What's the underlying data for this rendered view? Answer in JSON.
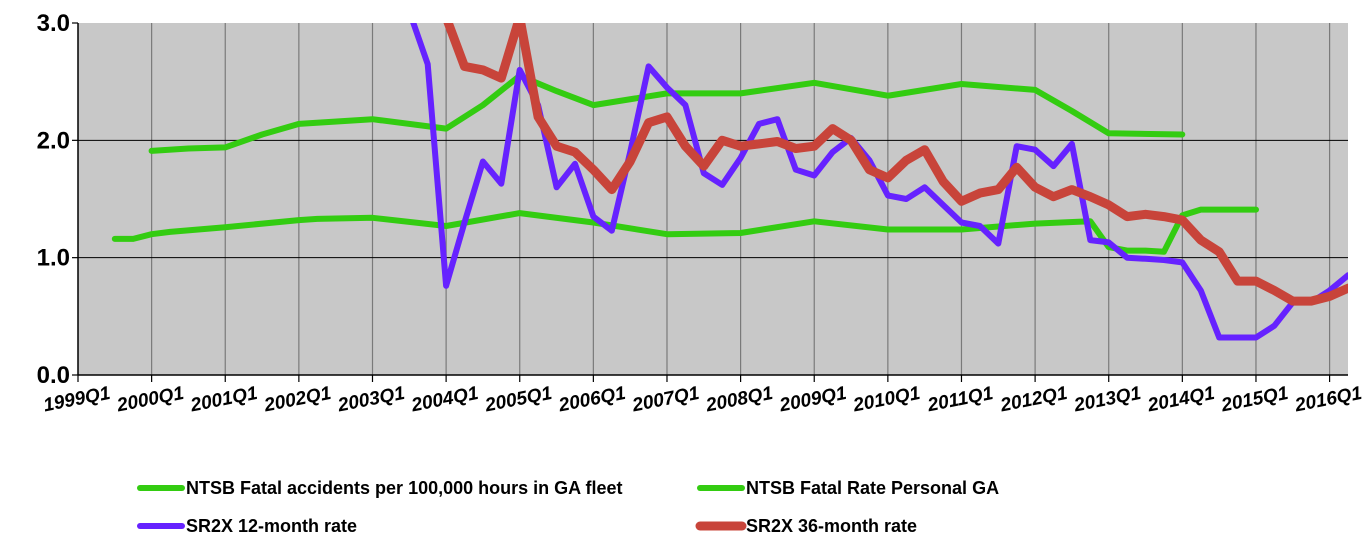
{
  "chart_data": {
    "type": "line",
    "title": "",
    "xlabel": "",
    "ylabel": "",
    "ylim": [
      0,
      3.0
    ],
    "xlim": [
      "1999Q1",
      "2016Q2"
    ],
    "y_ticks": [
      "0.0",
      "1.0",
      "2.0",
      "3.0"
    ],
    "x_ticks": [
      "1999Q1",
      "2000Q1",
      "2001Q1",
      "2002Q1",
      "2003Q1",
      "2004Q1",
      "2005Q1",
      "2006Q1",
      "2007Q1",
      "2008Q1",
      "2009Q1",
      "2010Q1",
      "2011Q1",
      "2012Q1",
      "2013Q1",
      "2014Q1",
      "2015Q1",
      "2016Q1"
    ],
    "grid": {
      "vertical": true,
      "horizontal": true
    },
    "plot_background": "#c8c8c8",
    "legend_position": "bottom",
    "series": [
      {
        "name": "NTSB Fatal accidents per 100,000 hours in GA fleet",
        "color": "#33cc11",
        "points": [
          [
            "1999Q3",
            1.16
          ],
          [
            "1999Q4",
            1.16
          ],
          [
            "2000Q1",
            1.2
          ],
          [
            "2000Q2",
            1.22
          ],
          [
            "2001Q1",
            1.26
          ],
          [
            "2002Q1",
            1.32
          ],
          [
            "2002Q2",
            1.33
          ],
          [
            "2003Q1",
            1.34
          ],
          [
            "2004Q1",
            1.27
          ],
          [
            "2005Q1",
            1.38
          ],
          [
            "2006Q1",
            1.3
          ],
          [
            "2007Q1",
            1.2
          ],
          [
            "2008Q1",
            1.21
          ],
          [
            "2009Q1",
            1.31
          ],
          [
            "2010Q1",
            1.24
          ],
          [
            "2011Q1",
            1.24
          ],
          [
            "2012Q1",
            1.29
          ],
          [
            "2012Q4",
            1.31
          ],
          [
            "2013Q1",
            1.09
          ],
          [
            "2013Q2",
            1.06
          ],
          [
            "2013Q3",
            1.06
          ],
          [
            "2013Q4",
            1.05
          ],
          [
            "2014Q1",
            1.36
          ],
          [
            "2014Q2",
            1.41
          ],
          [
            "2014Q3",
            1.41
          ],
          [
            "2014Q4",
            1.41
          ],
          [
            "2015Q1",
            1.41
          ]
        ]
      },
      {
        "name": "NTSB Fatal Rate Personal GA",
        "color": "#33cc11",
        "points": [
          [
            "2000Q1",
            1.91
          ],
          [
            "2000Q3",
            1.93
          ],
          [
            "2001Q1",
            1.94
          ],
          [
            "2001Q3",
            2.05
          ],
          [
            "2002Q1",
            2.14
          ],
          [
            "2003Q1",
            2.18
          ],
          [
            "2004Q1",
            2.1
          ],
          [
            "2004Q3",
            2.3
          ],
          [
            "2005Q1",
            2.55
          ],
          [
            "2005Q3",
            2.42
          ],
          [
            "2006Q1",
            2.3
          ],
          [
            "2007Q1",
            2.4
          ],
          [
            "2008Q1",
            2.4
          ],
          [
            "2009Q1",
            2.49
          ],
          [
            "2010Q1",
            2.38
          ],
          [
            "2011Q1",
            2.48
          ],
          [
            "2012Q1",
            2.43
          ],
          [
            "2012Q3",
            2.25
          ],
          [
            "2013Q1",
            2.06
          ],
          [
            "2014Q1",
            2.05
          ]
        ]
      },
      {
        "name": "SR2X 12-month rate",
        "color": "#6622ff",
        "points": [
          [
            "2003Q3",
            3.1
          ],
          [
            "2003Q4",
            2.65
          ],
          [
            "2004Q1",
            0.76
          ],
          [
            "2004Q2",
            1.3
          ],
          [
            "2004Q3",
            1.82
          ],
          [
            "2004Q4",
            1.63
          ],
          [
            "2005Q1",
            2.6
          ],
          [
            "2005Q2",
            2.3
          ],
          [
            "2005Q3",
            1.6
          ],
          [
            "2005Q4",
            1.8
          ],
          [
            "2006Q1",
            1.35
          ],
          [
            "2006Q2",
            1.23
          ],
          [
            "2006Q3",
            1.9
          ],
          [
            "2006Q4",
            2.63
          ],
          [
            "2007Q1",
            2.45
          ],
          [
            "2007Q2",
            2.3
          ],
          [
            "2007Q3",
            1.72
          ],
          [
            "2007Q4",
            1.62
          ],
          [
            "2008Q1",
            1.85
          ],
          [
            "2008Q2",
            2.14
          ],
          [
            "2008Q3",
            2.18
          ],
          [
            "2008Q4",
            1.75
          ],
          [
            "2009Q1",
            1.7
          ],
          [
            "2009Q2",
            1.9
          ],
          [
            "2009Q3",
            2.02
          ],
          [
            "2009Q4",
            1.83
          ],
          [
            "2010Q1",
            1.53
          ],
          [
            "2010Q2",
            1.5
          ],
          [
            "2010Q3",
            1.6
          ],
          [
            "2010Q4",
            1.45
          ],
          [
            "2011Q1",
            1.3
          ],
          [
            "2011Q2",
            1.27
          ],
          [
            "2011Q3",
            1.12
          ],
          [
            "2011Q4",
            1.95
          ],
          [
            "2012Q1",
            1.92
          ],
          [
            "2012Q2",
            1.78
          ],
          [
            "2012Q3",
            1.97
          ],
          [
            "2012Q4",
            1.15
          ],
          [
            "2013Q1",
            1.13
          ],
          [
            "2013Q2",
            1.0
          ],
          [
            "2013Q3",
            0.99
          ],
          [
            "2013Q4",
            0.98
          ],
          [
            "2014Q1",
            0.96
          ],
          [
            "2014Q2",
            0.72
          ],
          [
            "2014Q3",
            0.32
          ],
          [
            "2014Q4",
            0.32
          ],
          [
            "2015Q1",
            0.32
          ],
          [
            "2015Q2",
            0.42
          ],
          [
            "2015Q3",
            0.62
          ],
          [
            "2015Q4",
            0.62
          ],
          [
            "2016Q1",
            0.72
          ],
          [
            "2016Q2",
            0.85
          ]
        ]
      },
      {
        "name": "SR2X 36-month rate",
        "color": "#c8443a",
        "points": [
          [
            "2004Q1",
            3.05
          ],
          [
            "2004Q2",
            2.63
          ],
          [
            "2004Q3",
            2.6
          ],
          [
            "2004Q4",
            2.53
          ],
          [
            "2005Q1",
            3.05
          ],
          [
            "2005Q2",
            2.2
          ],
          [
            "2005Q3",
            1.95
          ],
          [
            "2005Q4",
            1.9
          ],
          [
            "2006Q1",
            1.75
          ],
          [
            "2006Q2",
            1.58
          ],
          [
            "2006Q3",
            1.82
          ],
          [
            "2006Q4",
            2.15
          ],
          [
            "2007Q1",
            2.2
          ],
          [
            "2007Q2",
            1.95
          ],
          [
            "2007Q3",
            1.78
          ],
          [
            "2007Q4",
            2.0
          ],
          [
            "2008Q1",
            1.95
          ],
          [
            "2008Q2",
            1.97
          ],
          [
            "2008Q3",
            1.99
          ],
          [
            "2008Q4",
            1.93
          ],
          [
            "2009Q1",
            1.95
          ],
          [
            "2009Q2",
            2.1
          ],
          [
            "2009Q3",
            2.0
          ],
          [
            "2009Q4",
            1.75
          ],
          [
            "2010Q1",
            1.68
          ],
          [
            "2010Q2",
            1.83
          ],
          [
            "2010Q3",
            1.92
          ],
          [
            "2010Q4",
            1.65
          ],
          [
            "2011Q1",
            1.48
          ],
          [
            "2011Q2",
            1.55
          ],
          [
            "2011Q3",
            1.58
          ],
          [
            "2011Q4",
            1.77
          ],
          [
            "2012Q1",
            1.6
          ],
          [
            "2012Q2",
            1.52
          ],
          [
            "2012Q3",
            1.58
          ],
          [
            "2012Q4",
            1.52
          ],
          [
            "2013Q1",
            1.45
          ],
          [
            "2013Q2",
            1.35
          ],
          [
            "2013Q3",
            1.37
          ],
          [
            "2013Q4",
            1.35
          ],
          [
            "2014Q1",
            1.32
          ],
          [
            "2014Q2",
            1.15
          ],
          [
            "2014Q3",
            1.05
          ],
          [
            "2014Q4",
            0.8
          ],
          [
            "2015Q1",
            0.8
          ],
          [
            "2015Q2",
            0.72
          ],
          [
            "2015Q3",
            0.63
          ],
          [
            "2015Q4",
            0.63
          ],
          [
            "2016Q1",
            0.67
          ],
          [
            "2016Q2",
            0.74
          ]
        ]
      }
    ]
  }
}
